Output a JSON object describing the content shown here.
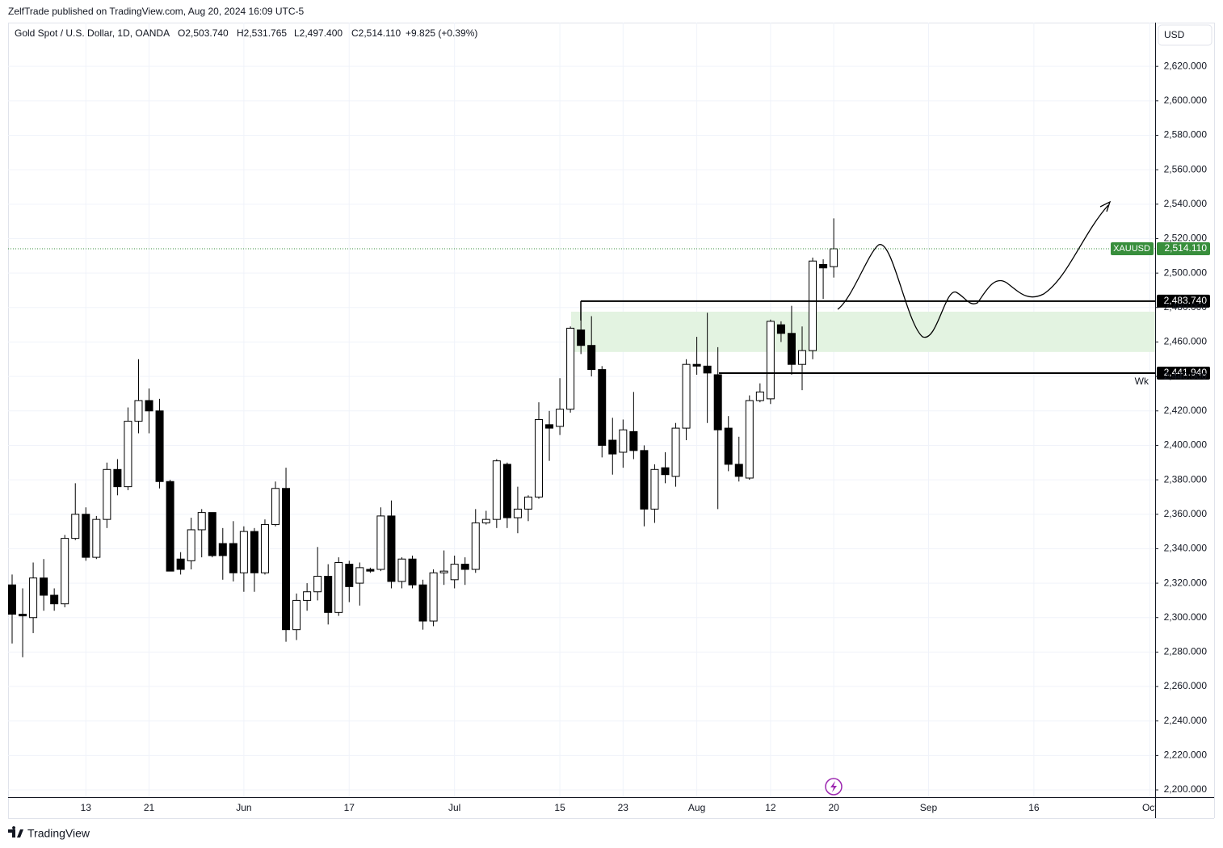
{
  "header": {
    "publisher": "ZelfTrade published on TradingView.com, Aug 20, 2024 16:09 UTC-5",
    "currency": "USD",
    "brand": "TradingView"
  },
  "chart_data": {
    "type": "candlestick",
    "legend": {
      "symbol": "Gold Spot / U.S. Dollar, 1D, OANDA",
      "open": "O2,503.740",
      "high": "H2,531.765",
      "low": "L2,497.400",
      "close": "C2,514.110",
      "change": "+9.825 (+0.39%)"
    },
    "categories": [
      null,
      null,
      null,
      null,
      null,
      null,
      null,
      "13",
      null,
      null,
      null,
      null,
      null,
      "21",
      null,
      null,
      null,
      null,
      null,
      null,
      null,
      null,
      "Jun",
      null,
      null,
      null,
      null,
      null,
      null,
      null,
      null,
      null,
      "17",
      null,
      null,
      null,
      null,
      null,
      null,
      null,
      null,
      null,
      "Jul",
      null,
      null,
      null,
      null,
      null,
      null,
      null,
      null,
      null,
      "15",
      null,
      null,
      null,
      null,
      null,
      "23",
      null,
      null,
      null,
      null,
      null,
      null,
      "Aug",
      null,
      null,
      null,
      null,
      null,
      null,
      "12",
      null,
      null,
      null,
      null,
      null,
      "20",
      null,
      null,
      null,
      null,
      null,
      null,
      null,
      null,
      "Sep",
      null,
      null,
      null,
      null,
      null,
      null,
      null,
      null,
      null,
      "16",
      null,
      null,
      null,
      null,
      null,
      null,
      null,
      null,
      null,
      null,
      "Oct"
    ],
    "open": [
      2319,
      2302,
      2300,
      2323,
      2313,
      2308,
      2346,
      2360,
      2335,
      2357,
      2386,
      2376,
      2414,
      2426,
      2420,
      2379,
      2334,
      2333,
      2351,
      2361,
      2343,
      2343,
      2326,
      2350,
      2326,
      2354,
      2375,
      2293,
      2310,
      2315,
      2324,
      2303,
      2331,
      2320,
      2328,
      2328,
      2359,
      2321,
      2334,
      2319,
      2298,
      2326,
      2322,
      2331,
      2328,
      2355,
      2357,
      2389,
      2358,
      2363,
      2370,
      2412,
      2411,
      2421,
      2467,
      2458,
      2444,
      2403,
      2396,
      2408,
      2397,
      2363,
      2387,
      2382,
      2410,
      2447,
      2446,
      2441,
      2410,
      2389,
      2381,
      2426,
      2427,
      2470,
      2465,
      2447,
      2455,
      2505,
      2503.74,
      null,
      null,
      null,
      null,
      null,
      null,
      null,
      null,
      null,
      null,
      null,
      null,
      null,
      null,
      null,
      null,
      null,
      null,
      null,
      null,
      null,
      null,
      null,
      null,
      null,
      null,
      null,
      null,
      null,
      null
    ],
    "high": [
      2325,
      2317,
      2332,
      2334,
      2317,
      2348,
      2378,
      2364,
      2359,
      2390,
      2392,
      2422,
      2450,
      2433,
      2427,
      2380,
      2338,
      2358,
      2363,
      2361,
      2352,
      2356,
      2353,
      2352,
      2357,
      2379,
      2387,
      2314,
      2320,
      2341,
      2331,
      2335,
      2333,
      2332,
      2329,
      2364,
      2368,
      2335,
      2336,
      2322,
      2328,
      2339,
      2336,
      2335,
      2363,
      2362,
      2392,
      2390,
      2376,
      2371,
      2425,
      2420,
      2439,
      2469,
      2483,
      2475,
      2446,
      2416,
      2415,
      2431,
      2400,
      2389,
      2396,
      2413,
      2450,
      2463,
      2477,
      2457,
      2417,
      2405,
      2429,
      2436,
      2473,
      2472,
      2481,
      2469,
      2509,
      2508,
      2531.765,
      null,
      null,
      null,
      null,
      null,
      null,
      null,
      null,
      null,
      null,
      null,
      null,
      null,
      null,
      null,
      null,
      null,
      null,
      null,
      null,
      null,
      null,
      null,
      null,
      null,
      null,
      null,
      null,
      null,
      null
    ],
    "low": [
      2285,
      2277,
      2291,
      2304,
      2304,
      2306,
      2345,
      2333,
      2334,
      2352,
      2371,
      2374,
      2407,
      2407,
      2375,
      2327,
      2325,
      2328,
      2335,
      2335,
      2322,
      2321,
      2315,
      2315,
      2325,
      2353,
      2286,
      2287,
      2304,
      2310,
      2296,
      2301,
      2309,
      2307,
      2326,
      2327,
      2317,
      2317,
      2317,
      2293,
      2295,
      2319,
      2317,
      2319,
      2326,
      2354,
      2352,
      2352,
      2349,
      2356,
      2369,
      2391,
      2406,
      2419,
      2453,
      2440,
      2393,
      2383,
      2387,
      2392,
      2353,
      2355,
      2378,
      2376,
      2403,
      2441,
      2413,
      2363,
      2385,
      2379,
      2380,
      2425,
      2424,
      2460,
      2441,
      2432,
      2450,
      2485,
      2497.4,
      null,
      null,
      null,
      null,
      null,
      null,
      null,
      null,
      null,
      null,
      null,
      null,
      null,
      null,
      null,
      null,
      null,
      null,
      null,
      null,
      null,
      null,
      null,
      null,
      null,
      null,
      null,
      null,
      null,
      null
    ],
    "close": [
      2302,
      2301,
      2323,
      2313,
      2308,
      2346,
      2360,
      2335,
      2357,
      2386,
      2376,
      2414,
      2426,
      2420,
      2379,
      2327,
      2328,
      2351,
      2361,
      2336,
      2336,
      2326,
      2350,
      2326,
      2354,
      2375,
      2293,
      2310,
      2315,
      2324,
      2303,
      2332,
      2318,
      2329,
      2327,
      2359,
      2321,
      2334,
      2319,
      2298,
      2326,
      2327,
      2331,
      2328,
      2355,
      2357,
      2391,
      2358,
      2363,
      2370,
      2415,
      2410,
      2421,
      2468,
      2458,
      2444,
      2400,
      2395,
      2409,
      2397,
      2363,
      2386,
      2383,
      2410,
      2447,
      2446,
      2442,
      2409,
      2389,
      2382,
      2426,
      2431,
      2472,
      2465,
      2447,
      2455,
      2507,
      2503,
      2514.11,
      null,
      null,
      null,
      null,
      null,
      null,
      null,
      null,
      null,
      null,
      null,
      null,
      null,
      null,
      null,
      null,
      null,
      null,
      null,
      null,
      null,
      null,
      null,
      null,
      null,
      null,
      null,
      null,
      null,
      null
    ],
    "up_color": "#ffffff",
    "down_color": "#000000",
    "ylim": [
      2195.8,
      2645.4
    ],
    "yticks": [
      {
        "value": 2200,
        "label": "2,200.000"
      },
      {
        "value": 2220,
        "label": "2,220.000"
      },
      {
        "value": 2240,
        "label": "2,240.000"
      },
      {
        "value": 2260,
        "label": "2,260.000"
      },
      {
        "value": 2280,
        "label": "2,280.000"
      },
      {
        "value": 2300,
        "label": "2,300.000"
      },
      {
        "value": 2320,
        "label": "2,320.000"
      },
      {
        "value": 2340,
        "label": "2,340.000"
      },
      {
        "value": 2360,
        "label": "2,360.000"
      },
      {
        "value": 2380,
        "label": "2,380.000"
      },
      {
        "value": 2400,
        "label": "2,400.000"
      },
      {
        "value": 2420,
        "label": "2,420.000"
      },
      {
        "value": 2440,
        "label": "2,440.000"
      },
      {
        "value": 2460,
        "label": "2,460.000"
      },
      {
        "value": 2480,
        "label": "2,480.000"
      },
      {
        "value": 2500,
        "label": "2,500.000"
      },
      {
        "value": 2520,
        "label": "2,520.000"
      },
      {
        "value": 2540,
        "label": "2,540.000"
      },
      {
        "value": 2560,
        "label": "2,560.000"
      },
      {
        "value": 2580,
        "label": "2,580.000"
      },
      {
        "value": 2600,
        "label": "2,600.000"
      },
      {
        "value": 2620,
        "label": "2,620.000"
      }
    ],
    "grid": true,
    "last_price": {
      "name": "XAUUSD",
      "value": 2514.11,
      "label": "2,514.110",
      "color": "#388e3c"
    },
    "zone": [
      2454.2,
      2477.6
    ],
    "zone_color": "#e3f3e1",
    "levels": [
      {
        "value": 2483.74,
        "label": "2,483.740"
      },
      {
        "value": 2441.94,
        "label": "2,441.940",
        "note": "Wk"
      }
    ]
  }
}
